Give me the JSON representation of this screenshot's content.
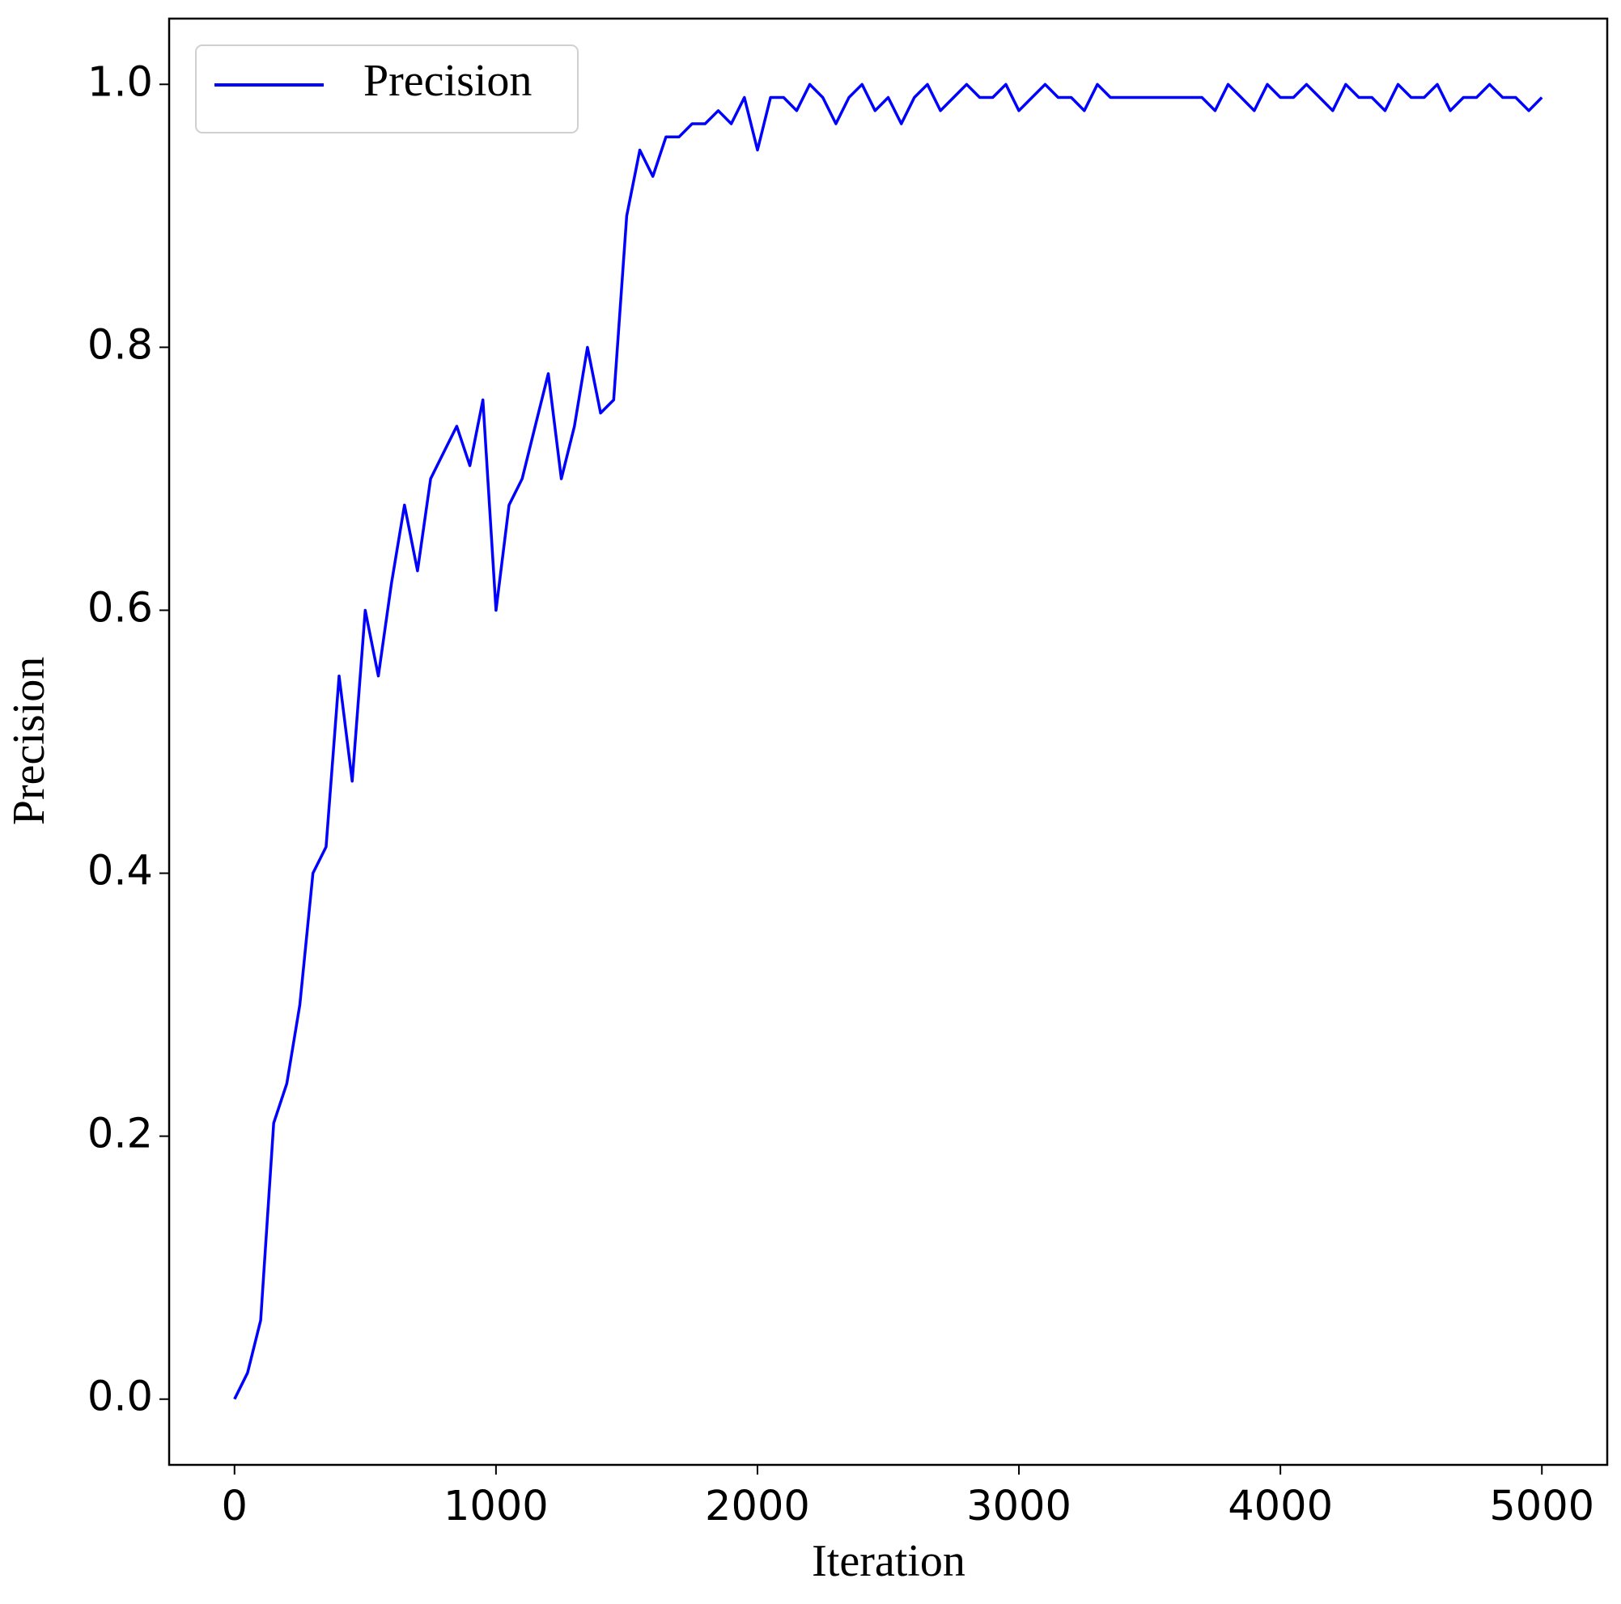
{
  "chart_data": {
    "type": "line",
    "xlabel": "Iteration",
    "ylabel": "Precision",
    "x": [
      0,
      50,
      100,
      150,
      200,
      250,
      300,
      350,
      400,
      450,
      500,
      550,
      600,
      650,
      700,
      750,
      800,
      850,
      900,
      950,
      1000,
      1050,
      1100,
      1150,
      1200,
      1250,
      1300,
      1350,
      1400,
      1450,
      1500,
      1550,
      1600,
      1650,
      1700,
      1750,
      1800,
      1850,
      1900,
      1950,
      2000,
      2050,
      2100,
      2150,
      2200,
      2250,
      2300,
      2350,
      2400,
      2450,
      2500,
      2550,
      2600,
      2650,
      2700,
      2750,
      2800,
      2850,
      2900,
      2950,
      3000,
      3050,
      3100,
      3150,
      3200,
      3250,
      3300,
      3350,
      3400,
      3450,
      3500,
      3550,
      3600,
      3650,
      3700,
      3750,
      3800,
      3850,
      3900,
      3950,
      4000,
      4050,
      4100,
      4150,
      4200,
      4250,
      4300,
      4350,
      4400,
      4450,
      4500,
      4550,
      4600,
      4650,
      4700,
      4750,
      4800,
      4850,
      4900,
      4950,
      5000
    ],
    "series": [
      {
        "name": "Precision",
        "color": "#0000ff",
        "values": [
          0,
          0.02,
          0.06,
          0.21,
          0.24,
          0.3,
          0.4,
          0.42,
          0.55,
          0.47,
          0.6,
          0.55,
          0.62,
          0.68,
          0.63,
          0.7,
          0.72,
          0.74,
          0.71,
          0.76,
          0.6,
          0.68,
          0.7,
          0.74,
          0.78,
          0.7,
          0.74,
          0.8,
          0.75,
          0.76,
          0.9,
          0.95,
          0.93,
          0.96,
          0.96,
          0.97,
          0.97,
          0.98,
          0.97,
          0.99,
          0.95,
          0.99,
          0.99,
          0.98,
          1.0,
          0.99,
          0.97,
          0.99,
          1.0,
          0.98,
          0.99,
          0.97,
          0.99,
          1.0,
          0.98,
          0.99,
          1.0,
          0.99,
          0.99,
          1.0,
          0.98,
          0.99,
          1.0,
          0.99,
          0.99,
          0.98,
          1.0,
          0.99,
          0.99,
          0.99,
          0.99,
          0.99,
          0.99,
          0.99,
          0.99,
          0.98,
          1.0,
          0.99,
          0.98,
          1.0,
          0.99,
          0.99,
          1.0,
          0.99,
          0.98,
          1.0,
          0.99,
          0.99,
          0.98,
          1.0,
          0.99,
          0.99,
          1.0,
          0.98,
          0.99,
          0.99,
          1.0,
          0.99,
          0.99,
          0.98,
          0.99
        ]
      }
    ],
    "xlim": [
      -250,
      5250
    ],
    "xticks": [
      0,
      1000,
      2000,
      3000,
      4000,
      5000
    ],
    "ylim": [
      -0.05,
      1.05
    ],
    "yticks": [
      {
        "value": 0,
        "label": "0.0"
      },
      0.2,
      0.4,
      0.6,
      0.8,
      {
        "value": 1,
        "label": "1.0"
      }
    ],
    "legend": "upper left"
  }
}
